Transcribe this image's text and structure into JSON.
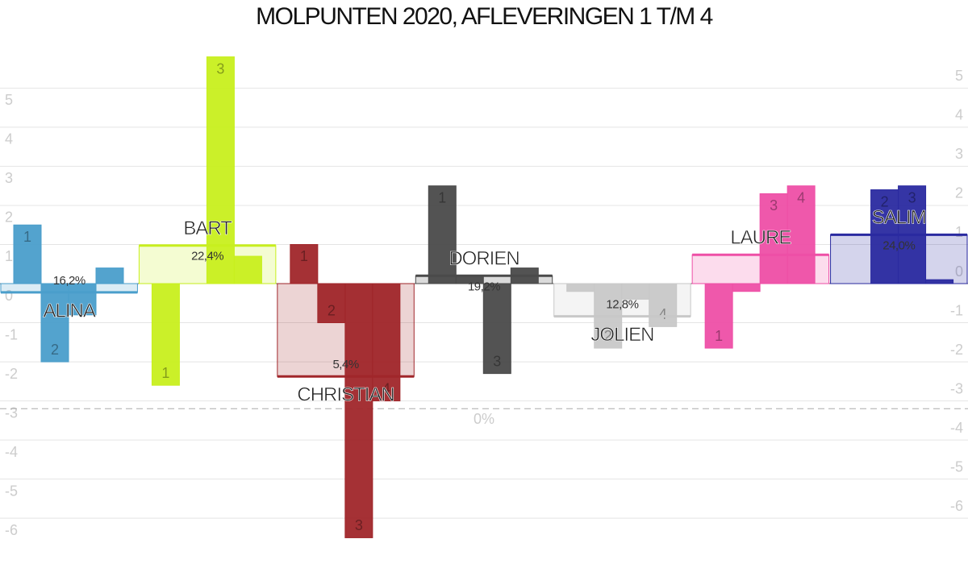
{
  "chart_data": {
    "type": "grouped-bar",
    "title": "MOLPUNTEN 2020, AFLEVERINGEN 1 T/M 4",
    "categories": [
      "ALINA",
      "BART",
      "CHRISTIAN",
      "DORIEN",
      "JOLIEN",
      "LAURE",
      "SALIM"
    ],
    "colors": [
      "#4a9ecb",
      "#c8ef1e",
      "#a0262a",
      "#4a4a4a",
      "#c8c8c8",
      "#ee4fa6",
      "#2a2aa0"
    ],
    "percent_labels": [
      "16,2%",
      "22,4%",
      "5,4%",
      "19,2%",
      "12,8%",
      "",
      "24,0%"
    ],
    "series": [
      {
        "name": "1",
        "values": [
          1.5,
          -2.6,
          1.0,
          2.5,
          -0.2,
          -1.65,
          0
        ]
      },
      {
        "name": "2",
        "values": [
          -2.0,
          0,
          -1.0,
          0.2,
          -1.65,
          -0.2,
          2.4
        ]
      },
      {
        "name": "3",
        "values": [
          -0.8,
          5.8,
          -6.5,
          -2.3,
          -0.4,
          2.3,
          2.5
        ]
      },
      {
        "name": "4",
        "values": [
          0.4,
          0.7,
          -3.0,
          0.4,
          -1.1,
          2.5,
          0.1
        ]
      }
    ],
    "reference_line": {
      "value": -3.2,
      "label": "0%"
    },
    "ylim": [
      -6.8,
      6.1
    ],
    "yticks": [
      -6,
      -5,
      -4,
      -3,
      -2,
      -1,
      0,
      1,
      2,
      3,
      4,
      5
    ],
    "grid": true
  }
}
